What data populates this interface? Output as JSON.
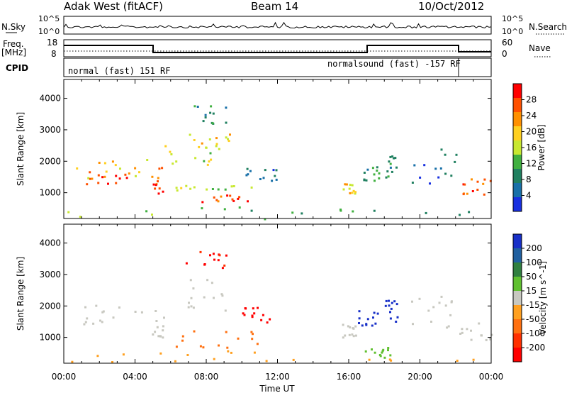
{
  "header": {
    "title": "Adak West (fitACF)",
    "beam": "Beam 14",
    "date": "10/Oct/2012"
  },
  "top_panels": {
    "nsky_label": "N.Sky",
    "nsearch_label": "N.Search",
    "nsky_ticks": [
      "10^5",
      "10^0"
    ],
    "nsearch_ticks": [
      "10^5",
      "10^0"
    ],
    "freq_label": "Freq.",
    "freq_unit": "[MHz]",
    "freq_ticks": [
      "18",
      "8"
    ],
    "nave_label": "Nave",
    "nave_ticks": [
      "60",
      "0"
    ],
    "cpid_label": "CPID",
    "cpid_segments": [
      {
        "label": "normal (fast) 151 RF",
        "start_hour": 0,
        "end_hour": 22
      },
      {
        "label": "normalsound (fast) -157 RF",
        "start_hour": 17,
        "end_hour": 22
      }
    ]
  },
  "chart_data": [
    {
      "type": "heatmap",
      "name": "power",
      "ylabel": "Slant Range [km]",
      "xlabel": "Time UT",
      "ylim": [
        180,
        4600
      ],
      "xlim": [
        0,
        24
      ],
      "y_ticks": [
        1000,
        2000,
        3000,
        4000
      ],
      "x_tick_labels": [
        "00:00",
        "04:00",
        "08:00",
        "12:00",
        "16:00",
        "20:00",
        "00:00"
      ],
      "colorbar_label": "Power [dB]",
      "colorbar_ticks": [
        "28",
        "24",
        "20",
        "16",
        "12",
        "8",
        "4"
      ],
      "colors": [
        "#ff0000",
        "#ff5000",
        "#ff9000",
        "#ffd020",
        "#c8e830",
        "#40b040",
        "#208060",
        "#1870a8",
        "#1830e0"
      ],
      "regions": [
        {
          "t": [
            0.0,
            4.8
          ],
          "r": [
            1450,
            2100
          ],
          "v": 20
        },
        {
          "t": [
            0.8,
            3.6
          ],
          "r": [
            1300,
            1700
          ],
          "v": 27
        },
        {
          "t": [
            4.9,
            5.6
          ],
          "r": [
            1000,
            1900
          ],
          "v": 27
        },
        {
          "t": [
            5.6,
            8.5
          ],
          "r": [
            1800,
            2600
          ],
          "v": 16
        },
        {
          "t": [
            7.0,
            9.3
          ],
          "r": [
            2300,
            2900
          ],
          "v": 18
        },
        {
          "t": [
            6.0,
            11.0
          ],
          "r": [
            1050,
            1250
          ],
          "v": 14
        },
        {
          "t": [
            7.5,
            10.5
          ],
          "r": [
            700,
            950
          ],
          "v": 27
        },
        {
          "t": [
            10.2,
            12.2
          ],
          "r": [
            1400,
            1800
          ],
          "v": 6
        },
        {
          "t": [
            15.6,
            16.4
          ],
          "r": [
            1000,
            1500
          ],
          "v": 18
        },
        {
          "t": [
            16.8,
            17.8
          ],
          "r": [
            1400,
            1900
          ],
          "v": 10
        },
        {
          "t": [
            18.0,
            18.7
          ],
          "r": [
            1500,
            2200
          ],
          "v": 10
        },
        {
          "t": [
            22.0,
            24.0
          ],
          "r": [
            900,
            1500
          ],
          "v": 26
        },
        {
          "t": [
            19.5,
            22.0
          ],
          "r": [
            1300,
            2500
          ],
          "v": 6
        },
        {
          "t": [
            6.8,
            9.2
          ],
          "r": [
            3200,
            3800
          ],
          "v": 8
        },
        {
          "t": [
            0.0,
            24.0
          ],
          "r": [
            180,
            600
          ],
          "v": 12
        }
      ]
    },
    {
      "type": "heatmap",
      "name": "velocity",
      "ylabel": "Slant Range [km]",
      "xlabel": "Time UT",
      "ylim": [
        180,
        4600
      ],
      "xlim": [
        0,
        24
      ],
      "y_ticks": [
        1000,
        2000,
        3000,
        4000
      ],
      "x_tick_labels": [
        "00:00",
        "04:00",
        "08:00",
        "12:00",
        "16:00",
        "20:00",
        "00:00"
      ],
      "colorbar_label": "Velocity [m s^-1]",
      "colorbar_ticks": [
        "200",
        "100",
        "50",
        "15",
        "-15",
        "-50",
        "-100",
        "-200"
      ],
      "colors": [
        "#1830c8",
        "#2060a0",
        "#308040",
        "#60c030",
        "#c8c8c0",
        "#ffa020",
        "#ff7010",
        "#ff3000",
        "#ff0000"
      ],
      "regions": [
        {
          "t": [
            0.0,
            4.8
          ],
          "r": [
            1450,
            2100
          ],
          "v": 0
        },
        {
          "t": [
            4.9,
            5.6
          ],
          "r": [
            1000,
            1900
          ],
          "v": 0
        },
        {
          "t": [
            5.6,
            9.3
          ],
          "r": [
            1800,
            2900
          ],
          "v": 0
        },
        {
          "t": [
            6.0,
            11.0
          ],
          "r": [
            700,
            1250
          ],
          "v": -60
        },
        {
          "t": [
            10.0,
            12.0
          ],
          "r": [
            1450,
            2000
          ],
          "v": -220
        },
        {
          "t": [
            15.6,
            16.4
          ],
          "r": [
            1000,
            1500
          ],
          "v": 0
        },
        {
          "t": [
            16.5,
            17.7
          ],
          "r": [
            1400,
            1900
          ],
          "v": 210
        },
        {
          "t": [
            18.0,
            18.7
          ],
          "r": [
            1500,
            2200
          ],
          "v": 210
        },
        {
          "t": [
            22.0,
            24.0
          ],
          "r": [
            900,
            1500
          ],
          "v": 0
        },
        {
          "t": [
            19.5,
            22.0
          ],
          "r": [
            1300,
            2500
          ],
          "v": 0
        },
        {
          "t": [
            6.8,
            9.2
          ],
          "r": [
            3200,
            3800
          ],
          "v": -200
        },
        {
          "t": [
            16.8,
            18.3
          ],
          "r": [
            350,
            700
          ],
          "v": 40
        },
        {
          "t": [
            0.0,
            24.0
          ],
          "r": [
            180,
            600
          ],
          "v": -40
        }
      ]
    }
  ]
}
